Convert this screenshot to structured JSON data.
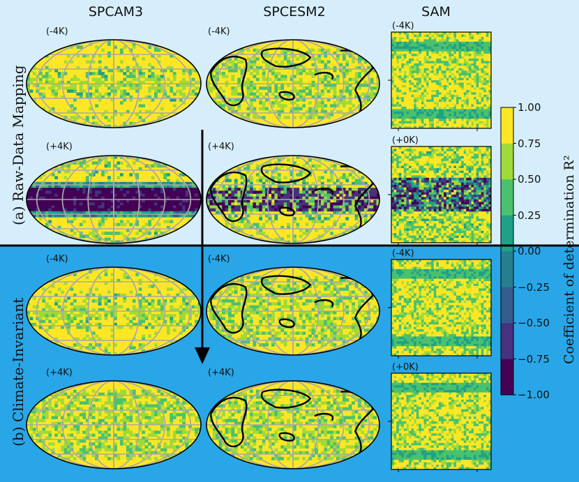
{
  "chart_data": {
    "type": "heatmap",
    "columns": [
      "SPCAM3",
      "SPCESM2",
      "SAM"
    ],
    "rows": [
      {
        "label": "(a) Raw-Data Mapping",
        "panels": [
          [
            "(-4K)",
            "(-4K)",
            "(-4K)"
          ],
          [
            "(+4K)",
            "(+4K)",
            "(+0K)"
          ]
        ]
      },
      {
        "label": "(b) Climate-Invariant",
        "panels": [
          [
            "(-4K)",
            "(-4K)",
            "(-4K)"
          ],
          [
            "(+4K)",
            "(+4K)",
            "(+0K)"
          ]
        ]
      }
    ],
    "colorbar": {
      "label": "Coefficient of determination R²",
      "range": [
        -1.0,
        1.0
      ],
      "ticks": [
        "1.00",
        "0.75",
        "0.50",
        "0.25",
        "0.00",
        "−0.25",
        "−0.50",
        "−0.75",
        "−1.00"
      ],
      "colors": [
        "#440154",
        "#46327e",
        "#365c8d",
        "#277f8e",
        "#1fa187",
        "#4ac16d",
        "#a0da39",
        "#fde725"
      ]
    }
  }
}
